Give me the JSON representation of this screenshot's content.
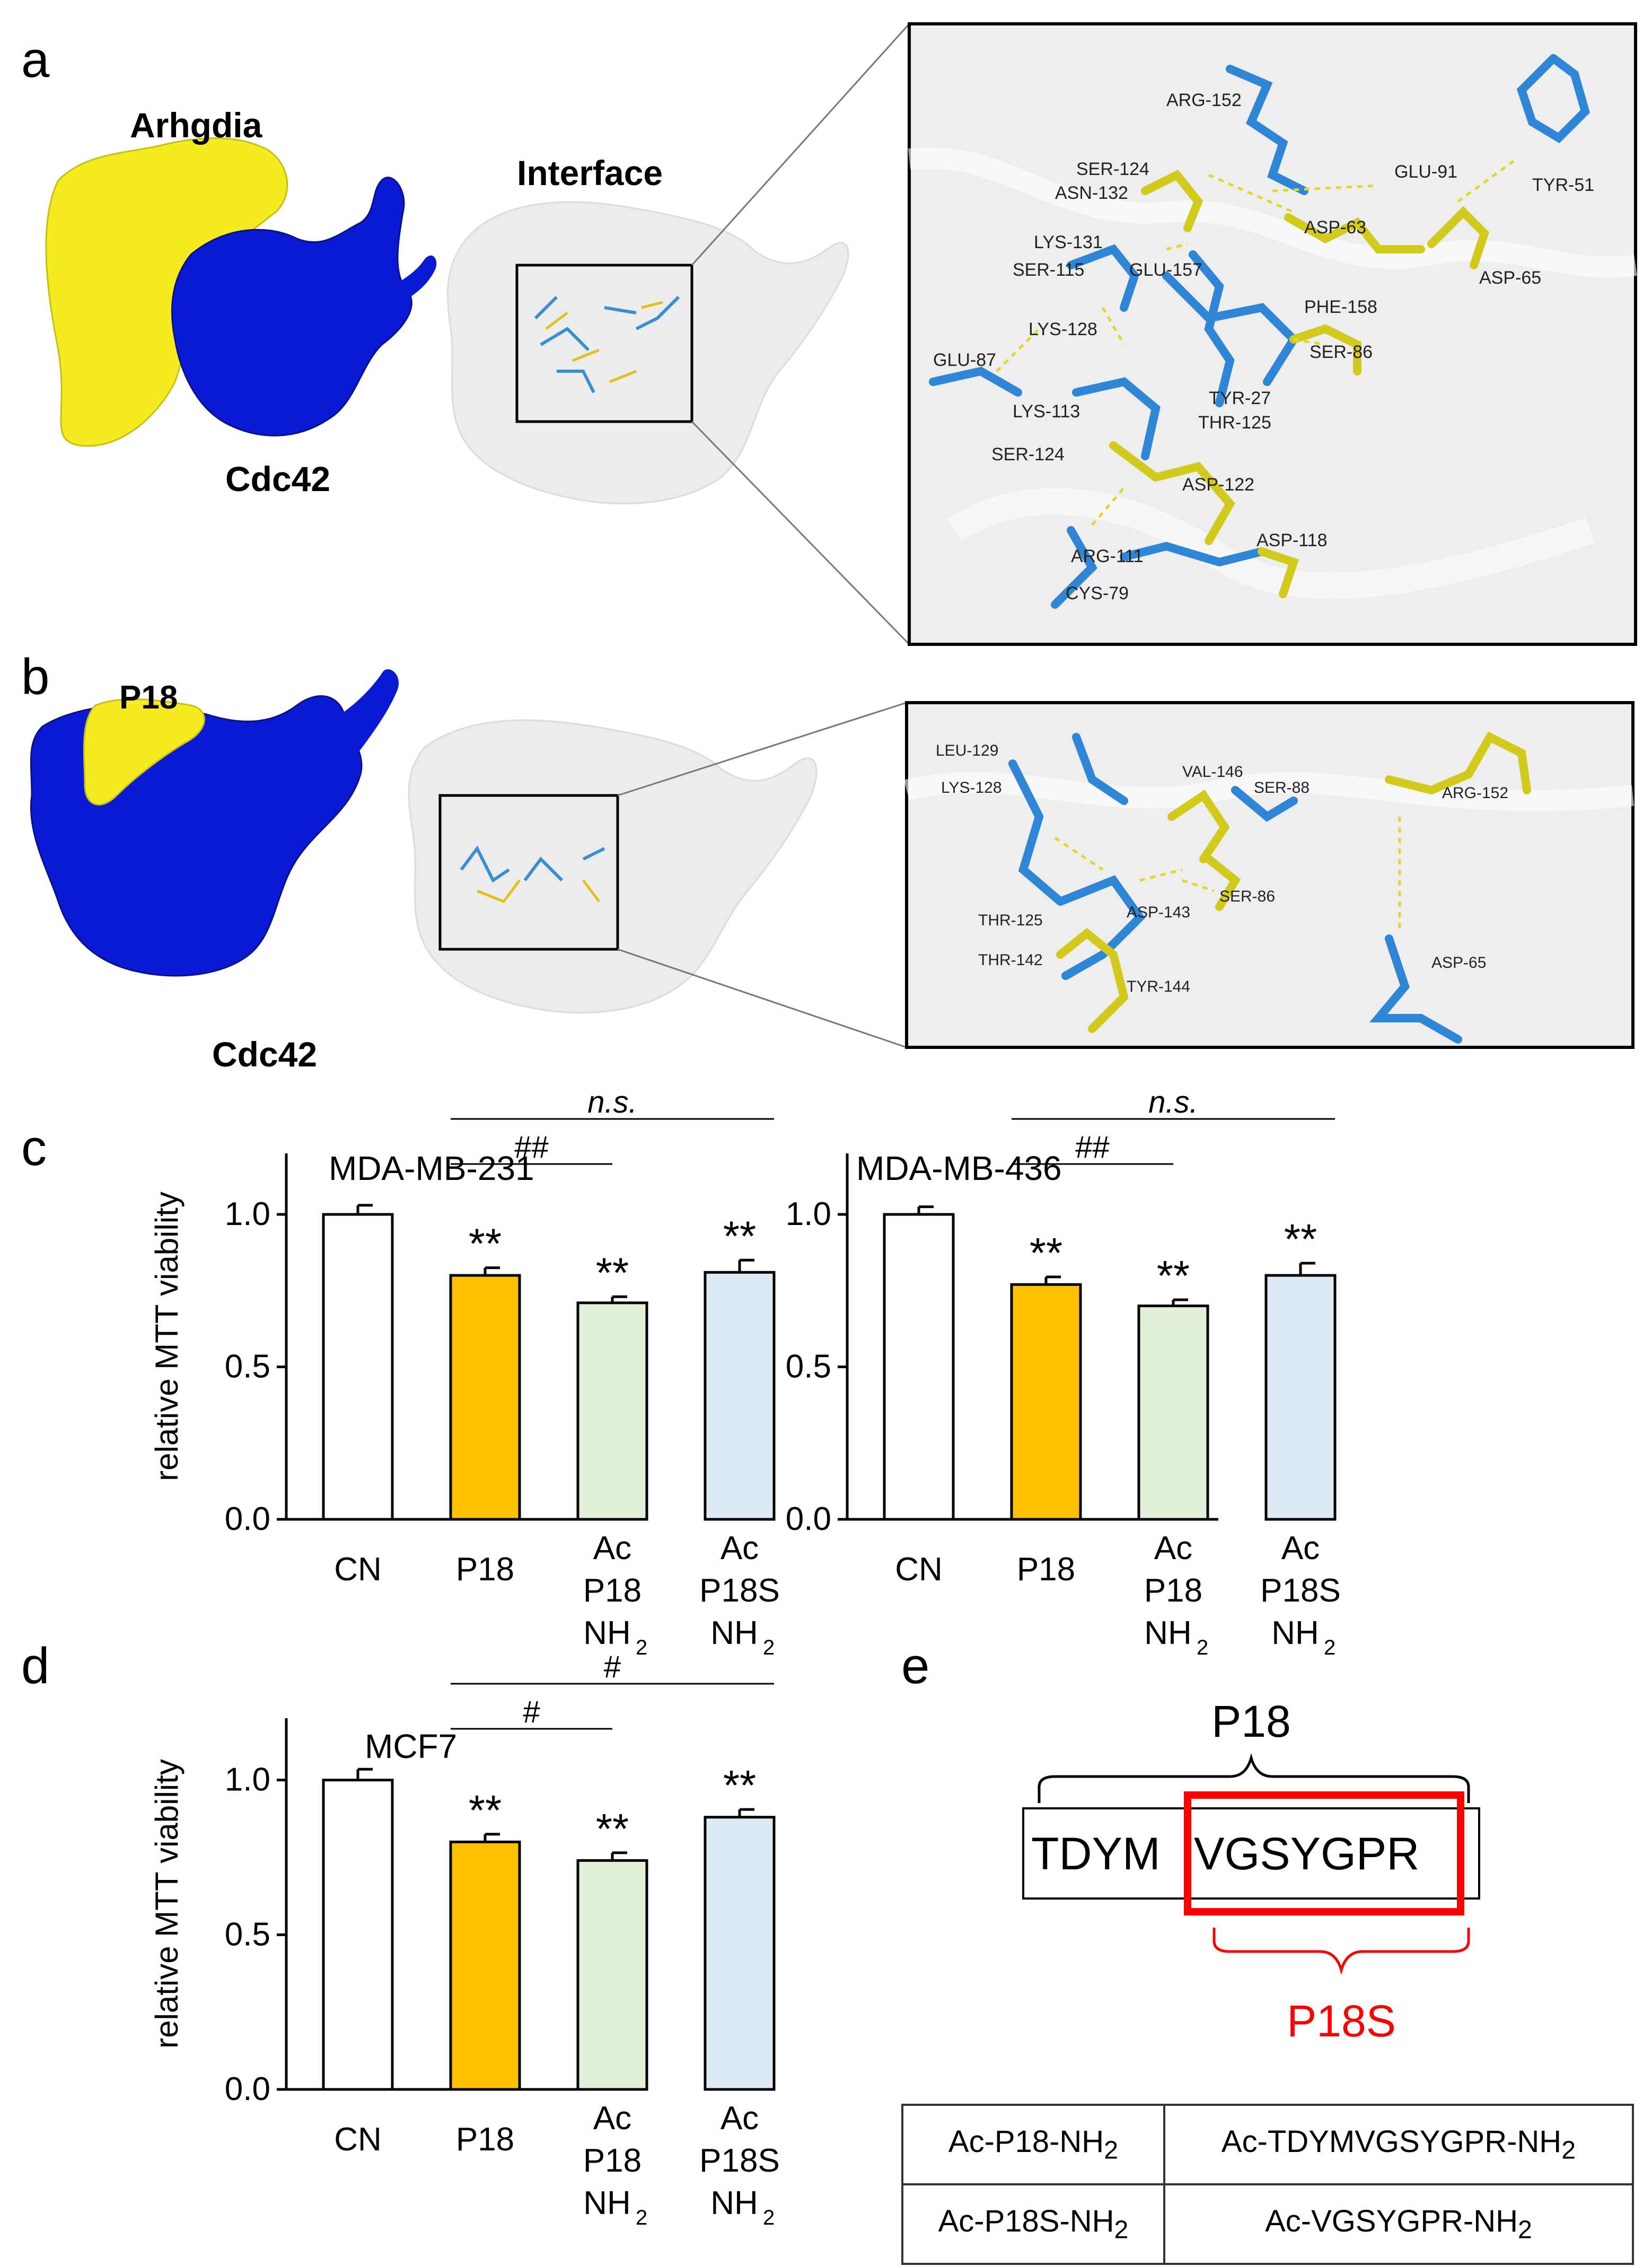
{
  "panels": {
    "a": {
      "label": "a",
      "protein1": "Arhgdia",
      "protein2": "Cdc42",
      "interface": "Interface",
      "residues": [
        "ARG-152",
        "SER-124",
        "ASN-132",
        "GLU-91",
        "TYR-51",
        "LYS-131",
        "ASP-63",
        "SER-115",
        "GLU-157",
        "ASP-65",
        "PHE-158",
        "LYS-128",
        "SER-86",
        "GLU-87",
        "TYR-27",
        "LYS-113",
        "THR-125",
        "SER-124",
        "ASP-122",
        "ASP-118",
        "ARG-111",
        "CYS-79"
      ]
    },
    "b": {
      "label": "b",
      "protein1": "P18",
      "protein2": "Cdc42",
      "residues": [
        "LEU-129",
        "VAL-146",
        "SER-88",
        "ARG-152",
        "LYS-128",
        "SER-86",
        "THR-125",
        "ASP-143",
        "THR-142",
        "TYR-144",
        "ASP-65"
      ]
    },
    "c": {
      "label": "c"
    },
    "d": {
      "label": "d"
    },
    "e": {
      "label": "e",
      "p18_label": "P18",
      "sequence_prefix": "TDYM",
      "sequence_boxed": "VGSYGPR",
      "p18s_label": "P18S",
      "table": [
        {
          "name": "Ac-P18-NH",
          "name_sub": "2",
          "seq": "Ac-TDYMVGSYGPR-NH",
          "seq_sub": "2"
        },
        {
          "name": "Ac-P18S-NH",
          "name_sub": "2",
          "seq": "Ac-VGSYGPR-NH",
          "seq_sub": "2"
        }
      ]
    }
  },
  "chart_data": [
    {
      "type": "bar",
      "panel": "c",
      "title": "MDA-MB-231",
      "ylabel": "relative MTT viability",
      "ylim": [
        0,
        1.2
      ],
      "yticks": [
        "0.0",
        "0.5",
        "1.0"
      ],
      "categories": [
        "CN",
        "P18",
        "Ac P18 NH2",
        "Ac P18S NH2"
      ],
      "category_lines": [
        [
          "CN"
        ],
        [
          "P18"
        ],
        [
          "Ac",
          "P18",
          "NH",
          "2"
        ],
        [
          "Ac",
          "P18S",
          "NH",
          "2"
        ]
      ],
      "values": [
        1.0,
        0.8,
        0.71,
        0.81
      ],
      "errors": [
        0.03,
        0.025,
        0.02,
        0.04
      ],
      "sig_marks": [
        "",
        "**",
        "**",
        "**"
      ],
      "comparisons": [
        {
          "from": 1,
          "to": 2,
          "label": "##"
        },
        {
          "from": 1,
          "to": 3,
          "label": "n.s."
        }
      ],
      "colors": [
        "#ffffff",
        "#ffc000",
        "#e2f0d9",
        "#deebf7"
      ]
    },
    {
      "type": "bar",
      "panel": "c",
      "title": "MDA-MB-436",
      "ylabel": "",
      "ylim": [
        0,
        1.2
      ],
      "yticks": [
        "0.0",
        "0.5",
        "1.0"
      ],
      "categories": [
        "CN",
        "P18",
        "Ac P18 NH2",
        "Ac P18S NH2"
      ],
      "category_lines": [
        [
          "CN"
        ],
        [
          "P18"
        ],
        [
          "Ac",
          "P18",
          "NH",
          "2"
        ],
        [
          "Ac",
          "P18S",
          "NH",
          "2"
        ]
      ],
      "values": [
        1.0,
        0.77,
        0.7,
        0.8
      ],
      "errors": [
        0.025,
        0.025,
        0.02,
        0.04
      ],
      "sig_marks": [
        "",
        "**",
        "**",
        "**"
      ],
      "comparisons": [
        {
          "from": 1,
          "to": 2,
          "label": "##"
        },
        {
          "from": 1,
          "to": 3,
          "label": "n.s."
        }
      ],
      "colors": [
        "#ffffff",
        "#ffc000",
        "#e2f0d9",
        "#deebf7"
      ]
    },
    {
      "type": "bar",
      "panel": "d",
      "title": "MCF7",
      "ylabel": "relative MTT viability",
      "ylim": [
        0,
        1.2
      ],
      "yticks": [
        "0.0",
        "0.5",
        "1.0"
      ],
      "categories": [
        "CN",
        "P18",
        "Ac P18 NH2",
        "Ac P18S NH2"
      ],
      "category_lines": [
        [
          "CN"
        ],
        [
          "P18"
        ],
        [
          "Ac",
          "P18",
          "NH",
          "2"
        ],
        [
          "Ac",
          "P18S",
          "NH",
          "2"
        ]
      ],
      "values": [
        1.0,
        0.8,
        0.74,
        0.88
      ],
      "errors": [
        0.035,
        0.025,
        0.025,
        0.025
      ],
      "sig_marks": [
        "",
        "**",
        "**",
        "**"
      ],
      "comparisons": [
        {
          "from": 1,
          "to": 2,
          "label": "#"
        },
        {
          "from": 1,
          "to": 3,
          "label": "#"
        }
      ],
      "colors": [
        "#ffffff",
        "#ffc000",
        "#e2f0d9",
        "#deebf7"
      ]
    }
  ]
}
